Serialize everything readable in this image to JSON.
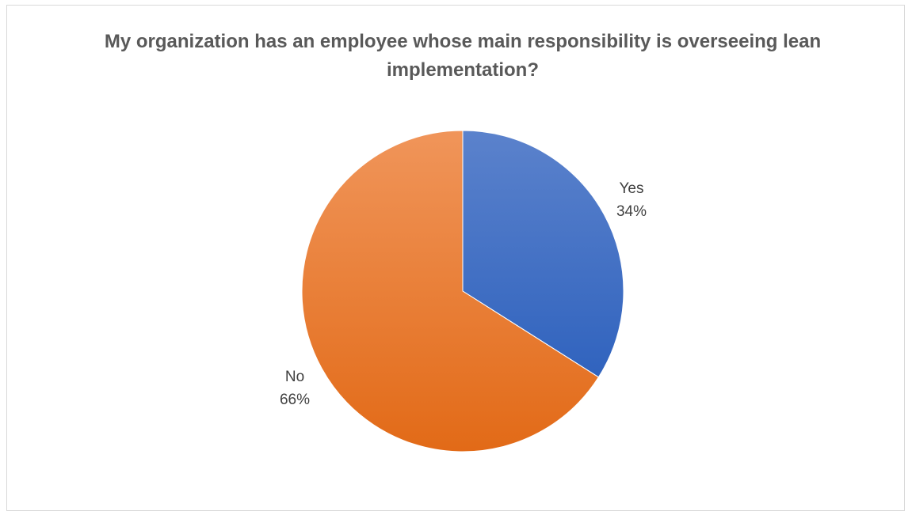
{
  "chart_data": {
    "type": "pie",
    "title": "My organization has an employee whose main responsibility is overseeing lean implementation?",
    "categories": [
      "Yes",
      "No"
    ],
    "values": [
      34,
      66
    ],
    "value_labels": [
      "34%",
      "66%"
    ],
    "colors": [
      "#4472C4",
      "#ED7D31"
    ],
    "legend": "none",
    "data_labels": "outside"
  }
}
